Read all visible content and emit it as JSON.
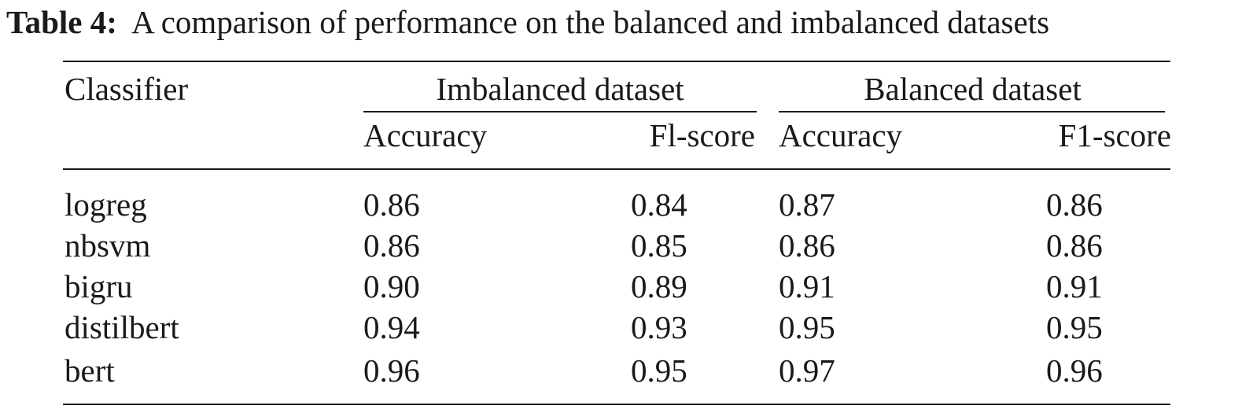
{
  "caption": {
    "label": "Table 4:",
    "text": "A comparison of performance on the balanced and imbalanced datasets"
  },
  "table": {
    "row_header": "Classifier",
    "groups": [
      {
        "title": "Imbalanced dataset",
        "columns": [
          "Accuracy",
          "Fl-score"
        ]
      },
      {
        "title": "Balanced dataset",
        "columns": [
          "Accuracy",
          "F1-score"
        ]
      }
    ],
    "rows": [
      {
        "classifier": "logreg",
        "values": [
          "0.86",
          "0.84",
          "0.87",
          "0.86"
        ]
      },
      {
        "classifier": "nbsvm",
        "values": [
          "0.86",
          "0.85",
          "0.86",
          "0.86"
        ]
      },
      {
        "classifier": "bigru",
        "values": [
          "0.90",
          "0.89",
          "0.91",
          "0.91"
        ]
      },
      {
        "classifier": "distilbert",
        "values": [
          "0.94",
          "0.93",
          "0.95",
          "0.95"
        ]
      },
      {
        "classifier": "bert",
        "values": [
          "0.96",
          "0.95",
          "0.97",
          "0.96"
        ]
      }
    ]
  }
}
